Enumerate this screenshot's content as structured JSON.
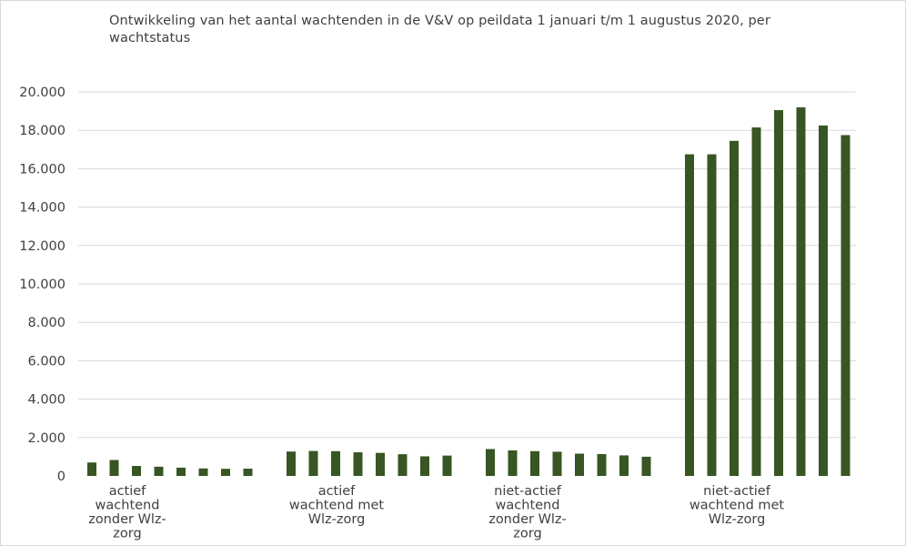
{
  "chart_data": {
    "type": "bar",
    "title": "Ontwikkeling van het aantal wachtenden in de V&V op peildata 1 januari t/m 1 augustus 2020, per wachtstatus",
    "xlabel": "",
    "ylabel": "",
    "ylim": [
      0,
      20000
    ],
    "yticks": [
      "0",
      "2.000",
      "4.000",
      "6.000",
      "8.000",
      "10.000",
      "12.000",
      "14.000",
      "16.000",
      "18.000",
      "20.000"
    ],
    "grid": true,
    "bar_color": "#375623",
    "categories": [
      [
        "actief",
        "wachtend",
        "zonder Wlz-",
        "zorg"
      ],
      [
        "actief",
        "wachtend met",
        "Wlz-zorg"
      ],
      [
        "niet-actief",
        "wachtend",
        "zonder Wlz-",
        "zorg"
      ],
      [
        "niet-actief",
        "wachtend met",
        "Wlz-zorg"
      ]
    ],
    "groups": [
      {
        "values": [
          700,
          830,
          520,
          480,
          430,
          390,
          370,
          380
        ]
      },
      {
        "values": [
          1270,
          1300,
          1290,
          1230,
          1200,
          1130,
          1020,
          1060
        ]
      },
      {
        "values": [
          1400,
          1330,
          1290,
          1260,
          1160,
          1140,
          1070,
          1000
        ]
      },
      {
        "values": [
          16750,
          16750,
          17450,
          18150,
          19050,
          19200,
          18250,
          17750
        ]
      }
    ]
  }
}
